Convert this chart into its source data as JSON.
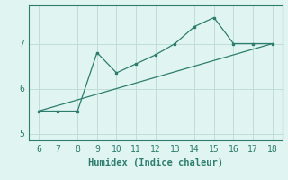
{
  "x": [
    6,
    7,
    8,
    9,
    10,
    11,
    12,
    13,
    14,
    15,
    16,
    17,
    18
  ],
  "y": [
    5.5,
    5.5,
    5.5,
    6.8,
    6.35,
    6.55,
    6.75,
    7.0,
    7.38,
    7.58,
    7.0,
    7.0,
    7.0
  ],
  "trend_x": [
    6,
    18
  ],
  "trend_y": [
    5.5,
    7.0
  ],
  "line_color": "#2d7d6e",
  "background_color": "#e0f4f1",
  "grid_color": "#c0ddd8",
  "xlabel": "Humidex (Indice chaleur)",
  "xlim": [
    5.5,
    18.5
  ],
  "ylim": [
    4.85,
    7.85
  ],
  "xticks": [
    6,
    7,
    8,
    9,
    10,
    11,
    12,
    13,
    14,
    15,
    16,
    17,
    18
  ],
  "yticks": [
    5,
    6,
    7
  ],
  "xlabel_fontsize": 7.5,
  "tick_fontsize": 7
}
